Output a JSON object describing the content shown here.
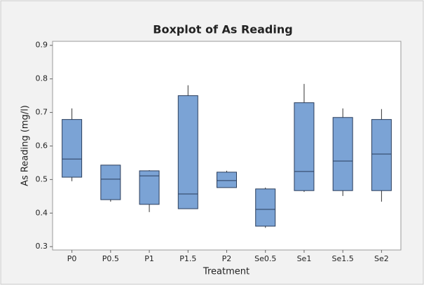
{
  "chart_data": {
    "type": "box",
    "title": "Boxplot of As Reading",
    "x_label": "Treatment",
    "y_label": "As Reading (mg/l)",
    "categories": [
      "P0",
      "P0.5",
      "P1",
      "P1.5",
      "P2",
      "Se0.5",
      "Se1",
      "Se1.5",
      "Se2"
    ],
    "min": [
      0.495,
      0.434,
      0.403,
      0.413,
      0.476,
      0.356,
      0.463,
      0.451,
      0.434
    ],
    "q1": [
      0.507,
      0.44,
      0.426,
      0.413,
      0.476,
      0.361,
      0.467,
      0.467,
      0.467
    ],
    "median": [
      0.561,
      0.501,
      0.511,
      0.457,
      0.497,
      0.411,
      0.524,
      0.555,
      0.576
    ],
    "q3": [
      0.679,
      0.543,
      0.526,
      0.75,
      0.522,
      0.472,
      0.729,
      0.685,
      0.679
    ],
    "max": [
      0.712,
      0.543,
      0.528,
      0.781,
      0.526,
      0.476,
      0.785,
      0.712,
      0.71
    ],
    "color": "#7ba3d5",
    "ylim": [
      0.29,
      0.912
    ],
    "yticks": [
      0.3,
      0.4,
      0.5,
      0.6,
      0.7,
      0.8,
      0.9
    ],
    "grid": false
  }
}
